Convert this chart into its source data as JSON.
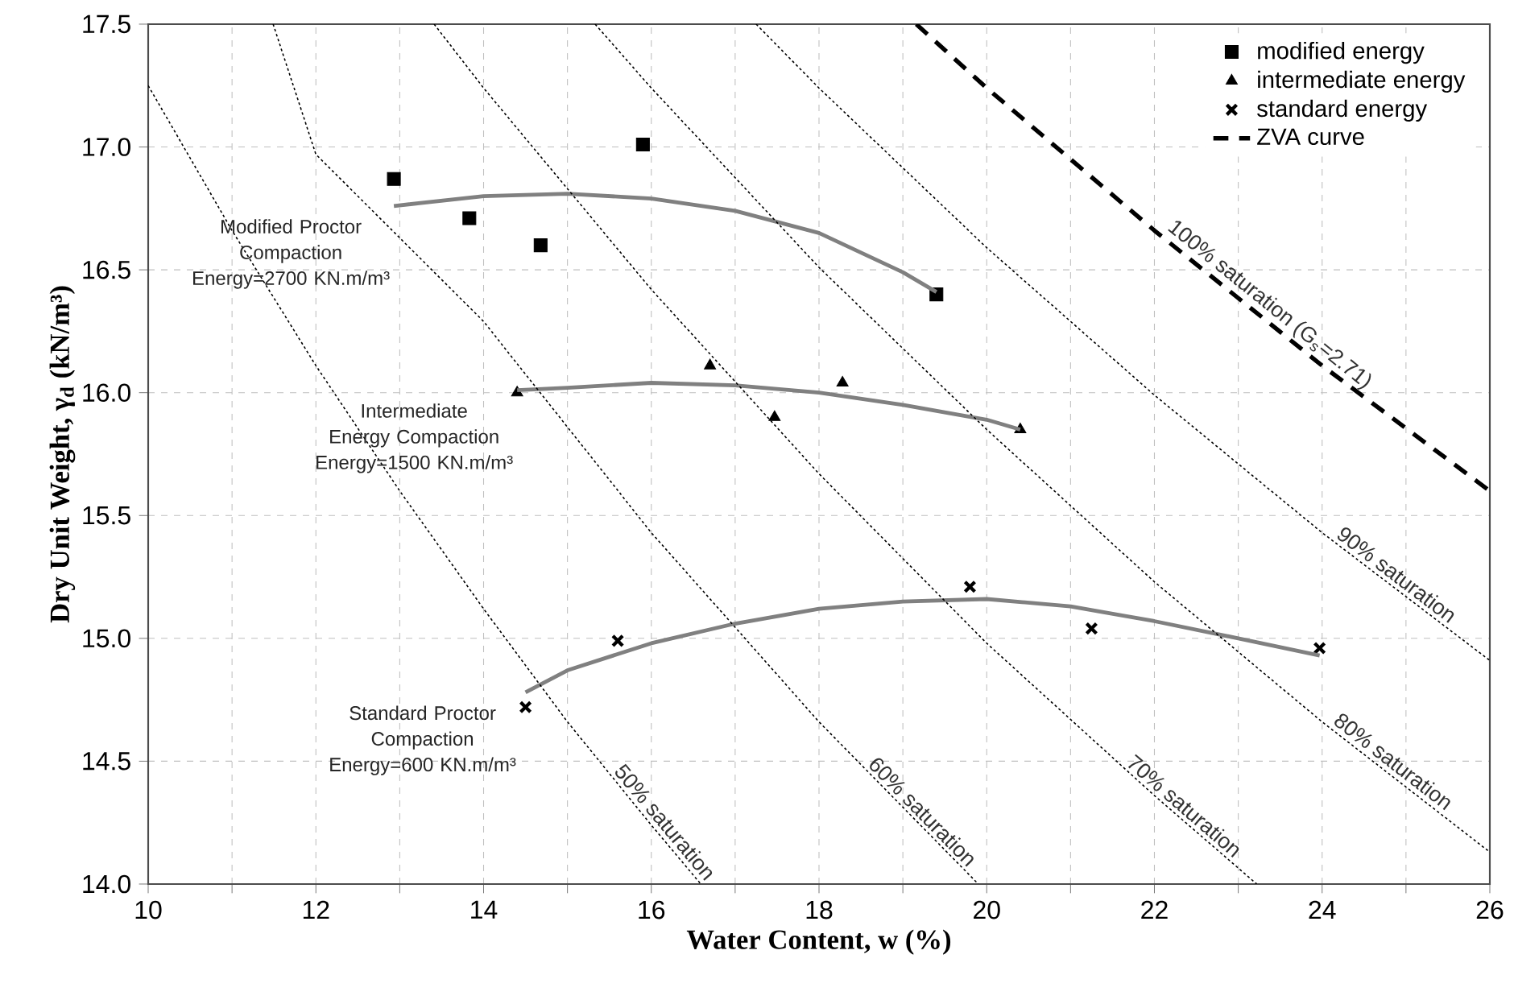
{
  "chart_data": {
    "type": "scatter",
    "xlabel": "Water Content, w (%)",
    "ylabel": "Dry Unit Weight, γ$_{d}$ (kN/m³)",
    "xlim": [
      10,
      26
    ],
    "ylim": [
      14,
      17.5
    ],
    "xticks": [
      10,
      {
        "value": 11,
        "label": null
      },
      12,
      {
        "value": 13,
        "label": null
      },
      14,
      {
        "value": 15,
        "label": null
      },
      16,
      {
        "value": 17,
        "label": null
      },
      18,
      {
        "value": 19,
        "label": null
      },
      20,
      {
        "value": 21,
        "label": null
      },
      22,
      {
        "value": 23,
        "label": null
      },
      24,
      {
        "value": 25,
        "label": null
      },
      26
    ],
    "yticks": [
      {
        "value": 14,
        "label": "14.0"
      },
      14.5,
      {
        "value": 15,
        "label": "15.0"
      },
      15.5,
      {
        "value": 16,
        "label": "16.0"
      },
      16.5,
      {
        "value": 17,
        "label": "17.0"
      },
      17.5
    ],
    "grid": true,
    "legend": "top right",
    "series": [
      {
        "name": "modified energy",
        "type": "scatter",
        "marker": "square",
        "color": "#000000",
        "x": [
          12.93,
          13.83,
          14.68,
          15.9,
          19.4
        ],
        "values": [
          16.87,
          16.71,
          16.6,
          17.01,
          16.4
        ]
      },
      {
        "name": "intermediate energy",
        "type": "scatter",
        "marker": "triangle",
        "color": "#000000",
        "x": [
          14.4,
          16.7,
          17.47,
          18.28,
          20.4
        ],
        "values": [
          16.0,
          16.11,
          15.9,
          16.04,
          15.85
        ]
      },
      {
        "name": "standard energy",
        "type": "scatter",
        "marker": "cross",
        "color": "#000000",
        "x": [
          14.5,
          15.6,
          19.8,
          21.25,
          23.97
        ],
        "values": [
          14.72,
          14.99,
          15.21,
          15.04,
          14.96
        ]
      },
      {
        "name": "ZVA curve",
        "type": "line",
        "line_style": "dashed",
        "color": "#000000",
        "x": [
          19.16,
          20,
          22,
          24,
          26
        ],
        "values": [
          17.5,
          17.24,
          16.66,
          16.11,
          15.6
        ]
      },
      {
        "type": "line",
        "line_style": "solid",
        "color": "#808080",
        "x": [
          12.93,
          14,
          15,
          16,
          17,
          18,
          19,
          19.4
        ],
        "values": [
          16.76,
          16.8,
          16.81,
          16.79,
          16.74,
          16.65,
          16.49,
          16.41
        ]
      },
      {
        "type": "line",
        "line_style": "solid",
        "color": "#808080",
        "x": [
          14.4,
          15,
          16,
          17,
          18,
          19,
          20,
          20.4
        ],
        "values": [
          16.01,
          16.02,
          16.04,
          16.03,
          16.0,
          15.95,
          15.89,
          15.85
        ]
      },
      {
        "type": "line",
        "line_style": "solid",
        "color": "#808080",
        "x": [
          14.5,
          15,
          16,
          17,
          18,
          19,
          20,
          21,
          22,
          23,
          23.97
        ],
        "values": [
          14.78,
          14.87,
          14.98,
          15.06,
          15.12,
          15.15,
          15.16,
          15.13,
          15.07,
          15.0,
          14.93
        ]
      },
      {
        "type": "line",
        "line_style": "dotted",
        "color": "#000000",
        "x": [
          10,
          11,
          12,
          13,
          14,
          15,
          16,
          16.59
        ],
        "values": [
          17.25,
          16.66,
          16.11,
          15.6,
          15.12,
          14.66,
          14.24,
          14.0
        ]
      },
      {
        "type": "line",
        "line_style": "dotted",
        "color": "#000000",
        "x": [
          11.49,
          12,
          14,
          16,
          18,
          19.9
        ],
        "values": [
          17.5,
          16.97,
          16.29,
          15.43,
          14.66,
          14.0
        ]
      },
      {
        "type": "line",
        "line_style": "dotted",
        "color": "#000000",
        "x": [
          13.41,
          14,
          16,
          18,
          20,
          22,
          23.22
        ],
        "values": [
          17.5,
          17.24,
          16.42,
          15.67,
          14.98,
          14.36,
          14.0
        ]
      },
      {
        "type": "line",
        "line_style": "dotted",
        "color": "#000000",
        "x": [
          15.33,
          16,
          18,
          20,
          22,
          24,
          26
        ],
        "values": [
          17.5,
          17.24,
          16.51,
          15.85,
          15.23,
          14.66,
          14.13
        ]
      },
      {
        "type": "line",
        "line_style": "dotted",
        "color": "#000000",
        "x": [
          17.25,
          18,
          20,
          22,
          24,
          26
        ],
        "values": [
          17.5,
          17.24,
          16.59,
          15.99,
          15.43,
          14.91
        ]
      }
    ],
    "annotations": [
      "Modified Proctor Compaction Energy=2700 KN.m/m³",
      "Intermediate Energy Compaction Energy=1500 KN.m/m³",
      "Standard Proctor Compaction Energy=600 KN.m/m³",
      {
        "text": "50% saturation",
        "x": 16.05,
        "y": 14.22
      },
      {
        "text": "60% saturation",
        "x": 19.13,
        "y": 14.26
      },
      {
        "text": "70% saturation",
        "x": 22.26,
        "y": 14.28
      },
      {
        "text": "80% saturation",
        "x": 24.76,
        "y": 14.46
      },
      {
        "text": "90% saturation",
        "x": 24.8,
        "y": 15.22
      },
      {
        "text": "100% saturation (G$_{s}$=2.71)",
        "x": 23.26,
        "y": 16.31
      }
    ]
  }
}
